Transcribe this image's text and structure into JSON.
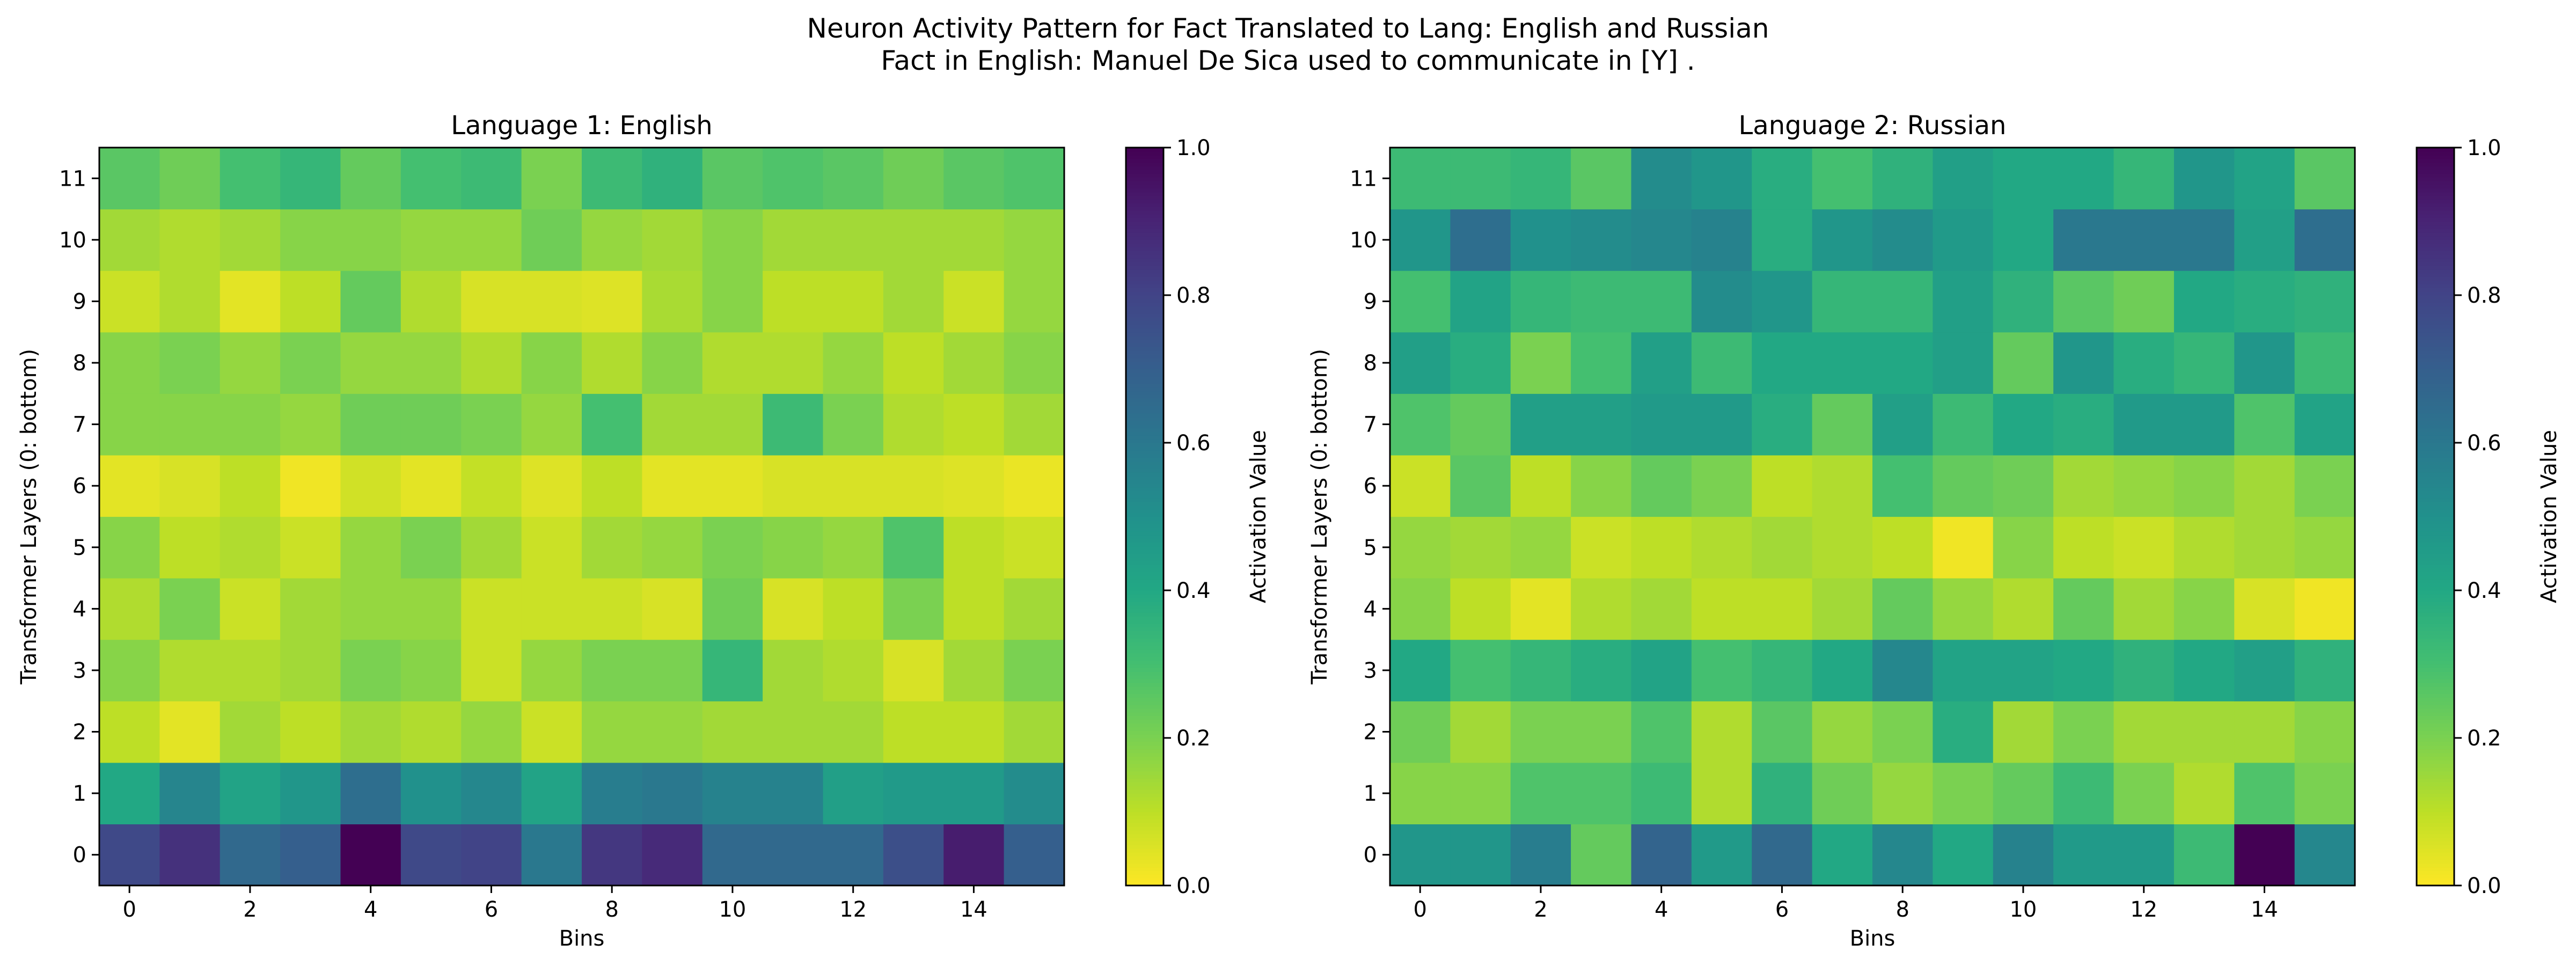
{
  "figure": {
    "title_line1": "Neuron Activity Pattern for Fact Translated to Lang: English and Russian",
    "title_line2": "Fact in English: Manuel De Sica used to communicate in [Y] ."
  },
  "chart_data": [
    {
      "type": "heatmap",
      "title": "Language 1: English",
      "xlabel": "Bins",
      "ylabel": "Transformer Layers (0: bottom)",
      "x_ticks": [
        0,
        2,
        4,
        6,
        8,
        10,
        12,
        14
      ],
      "y_ticks": [
        0,
        1,
        2,
        3,
        4,
        5,
        6,
        7,
        8,
        9,
        10,
        11
      ],
      "colorbar": {
        "label": "Activation Value",
        "colormap": "viridis_r",
        "range": [
          0.0,
          1.0
        ],
        "ticks": [
          "0.0",
          "0.2",
          "0.4",
          "0.6",
          "0.8",
          "1.0"
        ]
      },
      "values": [
        [
          0.78,
          0.86,
          0.66,
          0.7,
          1.0,
          0.78,
          0.8,
          0.6,
          0.84,
          0.88,
          0.66,
          0.66,
          0.66,
          0.76,
          0.92,
          0.7
        ],
        [
          0.4,
          0.55,
          0.42,
          0.48,
          0.64,
          0.5,
          0.54,
          0.42,
          0.58,
          0.6,
          0.56,
          0.56,
          0.44,
          0.46,
          0.46,
          0.52
        ],
        [
          0.1,
          0.04,
          0.14,
          0.1,
          0.14,
          0.12,
          0.16,
          0.08,
          0.16,
          0.16,
          0.14,
          0.14,
          0.14,
          0.1,
          0.1,
          0.14
        ],
        [
          0.18,
          0.12,
          0.12,
          0.14,
          0.2,
          0.18,
          0.08,
          0.16,
          0.2,
          0.2,
          0.34,
          0.14,
          0.12,
          0.06,
          0.14,
          0.2
        ],
        [
          0.12,
          0.2,
          0.08,
          0.14,
          0.16,
          0.16,
          0.08,
          0.08,
          0.08,
          0.06,
          0.22,
          0.06,
          0.1,
          0.2,
          0.1,
          0.14
        ],
        [
          0.18,
          0.1,
          0.12,
          0.08,
          0.16,
          0.2,
          0.14,
          0.08,
          0.14,
          0.16,
          0.2,
          0.18,
          0.16,
          0.28,
          0.1,
          0.08
        ],
        [
          0.04,
          0.06,
          0.1,
          0.02,
          0.07,
          0.04,
          0.09,
          0.05,
          0.1,
          0.04,
          0.04,
          0.06,
          0.06,
          0.06,
          0.05,
          0.03
        ],
        [
          0.18,
          0.18,
          0.18,
          0.16,
          0.22,
          0.22,
          0.2,
          0.16,
          0.3,
          0.14,
          0.14,
          0.32,
          0.2,
          0.12,
          0.1,
          0.14
        ],
        [
          0.18,
          0.2,
          0.16,
          0.2,
          0.16,
          0.16,
          0.12,
          0.18,
          0.12,
          0.18,
          0.12,
          0.12,
          0.16,
          0.1,
          0.14,
          0.18
        ],
        [
          0.08,
          0.12,
          0.04,
          0.1,
          0.24,
          0.12,
          0.06,
          0.06,
          0.05,
          0.13,
          0.18,
          0.1,
          0.1,
          0.14,
          0.08,
          0.16
        ],
        [
          0.14,
          0.12,
          0.14,
          0.18,
          0.18,
          0.16,
          0.16,
          0.22,
          0.16,
          0.14,
          0.18,
          0.14,
          0.14,
          0.14,
          0.14,
          0.16
        ],
        [
          0.26,
          0.22,
          0.3,
          0.34,
          0.24,
          0.3,
          0.32,
          0.2,
          0.32,
          0.36,
          0.26,
          0.28,
          0.26,
          0.22,
          0.26,
          0.28
        ]
      ]
    },
    {
      "type": "heatmap",
      "title": "Language 2: Russian",
      "xlabel": "Bins",
      "ylabel": "Transformer Layers (0: bottom)",
      "x_ticks": [
        0,
        2,
        4,
        6,
        8,
        10,
        12,
        14
      ],
      "y_ticks": [
        0,
        1,
        2,
        3,
        4,
        5,
        6,
        7,
        8,
        9,
        10,
        11
      ],
      "colorbar": {
        "label": "Activation Value",
        "colormap": "viridis_r",
        "range": [
          0.0,
          1.0
        ],
        "ticks": [
          "0.0",
          "0.2",
          "0.4",
          "0.6",
          "0.8",
          "1.0"
        ]
      },
      "values": [
        [
          0.48,
          0.48,
          0.58,
          0.24,
          0.68,
          0.46,
          0.66,
          0.4,
          0.54,
          0.4,
          0.56,
          0.46,
          0.46,
          0.32,
          1.0,
          0.54
        ],
        [
          0.18,
          0.18,
          0.28,
          0.28,
          0.32,
          0.12,
          0.36,
          0.22,
          0.16,
          0.2,
          0.24,
          0.32,
          0.2,
          0.12,
          0.28,
          0.2
        ],
        [
          0.22,
          0.14,
          0.2,
          0.2,
          0.28,
          0.12,
          0.26,
          0.16,
          0.2,
          0.38,
          0.14,
          0.2,
          0.14,
          0.14,
          0.14,
          0.18
        ],
        [
          0.4,
          0.3,
          0.34,
          0.38,
          0.42,
          0.3,
          0.34,
          0.4,
          0.54,
          0.42,
          0.42,
          0.4,
          0.36,
          0.4,
          0.44,
          0.36
        ],
        [
          0.18,
          0.1,
          0.04,
          0.12,
          0.14,
          0.1,
          0.1,
          0.14,
          0.24,
          0.16,
          0.12,
          0.24,
          0.14,
          0.18,
          0.06,
          0.02
        ],
        [
          0.16,
          0.14,
          0.16,
          0.08,
          0.1,
          0.12,
          0.14,
          0.12,
          0.1,
          0.02,
          0.18,
          0.1,
          0.08,
          0.12,
          0.14,
          0.16
        ],
        [
          0.08,
          0.26,
          0.1,
          0.18,
          0.24,
          0.2,
          0.1,
          0.12,
          0.3,
          0.24,
          0.22,
          0.14,
          0.16,
          0.18,
          0.14,
          0.2
        ],
        [
          0.28,
          0.24,
          0.44,
          0.44,
          0.46,
          0.46,
          0.38,
          0.24,
          0.44,
          0.32,
          0.4,
          0.38,
          0.46,
          0.46,
          0.28,
          0.42
        ],
        [
          0.44,
          0.38,
          0.2,
          0.3,
          0.44,
          0.32,
          0.4,
          0.4,
          0.4,
          0.44,
          0.24,
          0.48,
          0.38,
          0.34,
          0.48,
          0.32
        ],
        [
          0.3,
          0.42,
          0.34,
          0.32,
          0.32,
          0.52,
          0.48,
          0.34,
          0.34,
          0.44,
          0.36,
          0.26,
          0.22,
          0.4,
          0.38,
          0.36
        ],
        [
          0.48,
          0.64,
          0.5,
          0.52,
          0.54,
          0.56,
          0.38,
          0.48,
          0.52,
          0.46,
          0.4,
          0.6,
          0.6,
          0.6,
          0.44,
          0.64
        ],
        [
          0.32,
          0.32,
          0.34,
          0.26,
          0.52,
          0.48,
          0.38,
          0.3,
          0.36,
          0.44,
          0.4,
          0.4,
          0.34,
          0.48,
          0.42,
          0.26
        ]
      ]
    }
  ]
}
